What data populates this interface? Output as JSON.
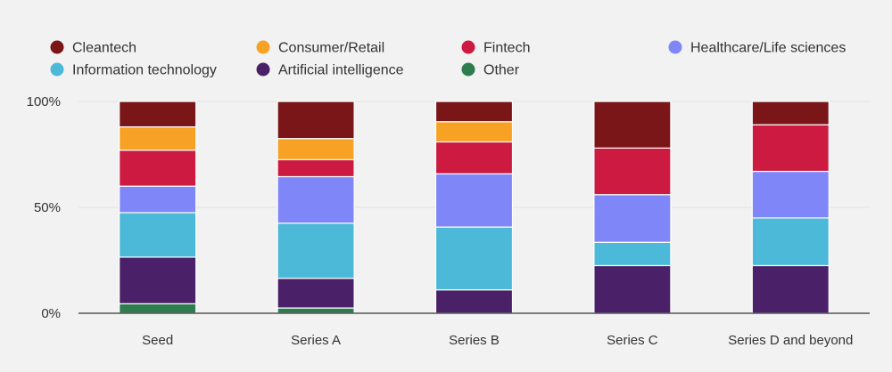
{
  "chart_data": {
    "type": "bar",
    "stacked": true,
    "normalized": true,
    "categories": [
      "Seed",
      "Series A",
      "Series B",
      "Series C",
      "Series D and beyond"
    ],
    "series": [
      {
        "name": "Other",
        "color": "#2e7d4f",
        "values": [
          4.5,
          2.5,
          0,
          0,
          0
        ]
      },
      {
        "name": "Artificial intelligence",
        "color": "#4a2168",
        "values": [
          22,
          14,
          11,
          22.5,
          22.5
        ]
      },
      {
        "name": "Information technology",
        "color": "#4cb9d8",
        "values": [
          21,
          26,
          29.5,
          11,
          22.5
        ]
      },
      {
        "name": "Healthcare/Life sciences",
        "color": "#7f86f8",
        "values": [
          12.5,
          22,
          25,
          22.5,
          22
        ]
      },
      {
        "name": "Fintech",
        "color": "#cc1a40",
        "values": [
          17,
          8,
          15,
          22,
          22
        ]
      },
      {
        "name": "Consumer/Retail",
        "color": "#f7a224",
        "values": [
          11,
          10,
          9.5,
          0,
          0
        ]
      },
      {
        "name": "Cleantech",
        "color": "#7a1518",
        "values": [
          12,
          17.5,
          9.5,
          22,
          11
        ]
      }
    ],
    "legend": {
      "position": "top",
      "order": [
        "Cleantech",
        "Consumer/Retail",
        "Fintech",
        "Healthcare/Life sciences",
        "Information technology",
        "Artificial intelligence",
        "Other"
      ]
    },
    "y_ticks": [
      "0%",
      "50%",
      "100%"
    ],
    "ylim": [
      0,
      100
    ],
    "grid": true
  }
}
